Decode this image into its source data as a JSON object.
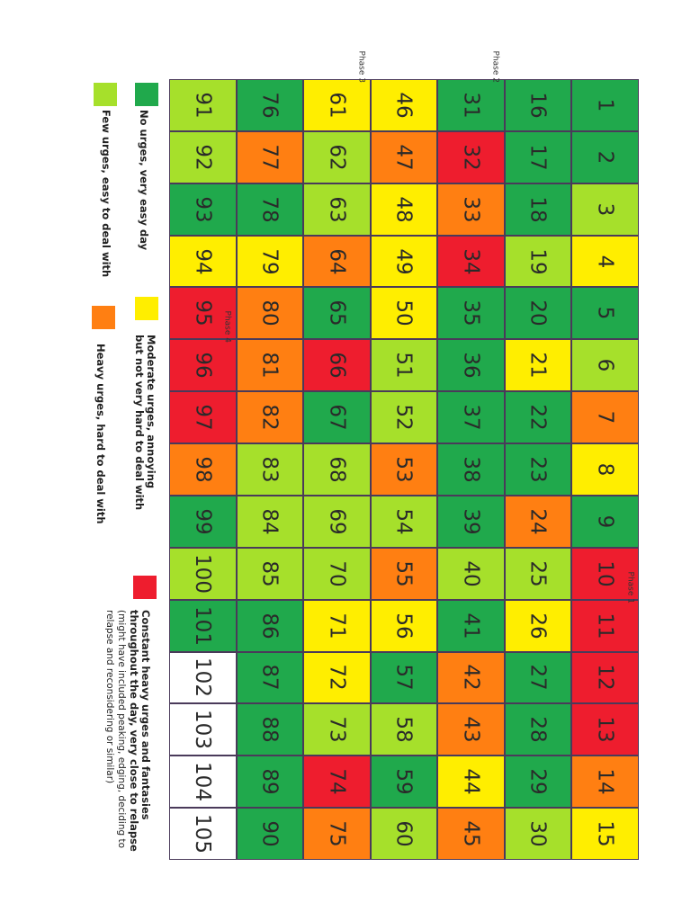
{
  "colors": {
    "G": "#20a94c",
    "L": "#a6e02b",
    "Y": "#ffee00",
    "O": "#ff7f12",
    "R": "#ee1d2e",
    "W": "#ffffff"
  },
  "grid": {
    "rows": [
      [
        {
          "n": "1",
          "c": "G"
        },
        {
          "n": "2",
          "c": "G"
        },
        {
          "n": "3",
          "c": "L"
        },
        {
          "n": "4",
          "c": "Y"
        },
        {
          "n": "5",
          "c": "G"
        },
        {
          "n": "6",
          "c": "L"
        },
        {
          "n": "7",
          "c": "O"
        },
        {
          "n": "8",
          "c": "Y"
        },
        {
          "n": "9",
          "c": "G"
        },
        {
          "n": "10",
          "c": "R"
        },
        {
          "n": "11",
          "c": "R",
          "phase": "Phase 1"
        },
        {
          "n": "12",
          "c": "R"
        },
        {
          "n": "13",
          "c": "R"
        },
        {
          "n": "14",
          "c": "O"
        },
        {
          "n": "15",
          "c": "Y"
        }
      ],
      [
        {
          "n": "16",
          "c": "G"
        },
        {
          "n": "17",
          "c": "G"
        },
        {
          "n": "18",
          "c": "G"
        },
        {
          "n": "19",
          "c": "L"
        },
        {
          "n": "20",
          "c": "G"
        },
        {
          "n": "21",
          "c": "Y"
        },
        {
          "n": "22",
          "c": "G"
        },
        {
          "n": "23",
          "c": "G"
        },
        {
          "n": "24",
          "c": "O"
        },
        {
          "n": "25",
          "c": "L"
        },
        {
          "n": "26",
          "c": "Y"
        },
        {
          "n": "27",
          "c": "G"
        },
        {
          "n": "28",
          "c": "G"
        },
        {
          "n": "29",
          "c": "G"
        },
        {
          "n": "30",
          "c": "L"
        }
      ],
      [
        {
          "n": "31",
          "c": "G",
          "phase": "Phase 2"
        },
        {
          "n": "32",
          "c": "R"
        },
        {
          "n": "33",
          "c": "O"
        },
        {
          "n": "34",
          "c": "R"
        },
        {
          "n": "35",
          "c": "G"
        },
        {
          "n": "36",
          "c": "G"
        },
        {
          "n": "37",
          "c": "G"
        },
        {
          "n": "38",
          "c": "G"
        },
        {
          "n": "39",
          "c": "G"
        },
        {
          "n": "40",
          "c": "L"
        },
        {
          "n": "41",
          "c": "G"
        },
        {
          "n": "42",
          "c": "O"
        },
        {
          "n": "43",
          "c": "O"
        },
        {
          "n": "44",
          "c": "Y"
        },
        {
          "n": "45",
          "c": "O"
        }
      ],
      [
        {
          "n": "46",
          "c": "Y"
        },
        {
          "n": "47",
          "c": "O"
        },
        {
          "n": "48",
          "c": "Y"
        },
        {
          "n": "49",
          "c": "Y"
        },
        {
          "n": "50",
          "c": "Y"
        },
        {
          "n": "51",
          "c": "L"
        },
        {
          "n": "52",
          "c": "L"
        },
        {
          "n": "53",
          "c": "O"
        },
        {
          "n": "54",
          "c": "L"
        },
        {
          "n": "55",
          "c": "O"
        },
        {
          "n": "56",
          "c": "Y"
        },
        {
          "n": "57",
          "c": "G"
        },
        {
          "n": "58",
          "c": "L"
        },
        {
          "n": "59",
          "c": "G"
        },
        {
          "n": "60",
          "c": "L"
        }
      ],
      [
        {
          "n": "61",
          "c": "Y",
          "phase": "Phase 3"
        },
        {
          "n": "62",
          "c": "L"
        },
        {
          "n": "63",
          "c": "L"
        },
        {
          "n": "64",
          "c": "O"
        },
        {
          "n": "65",
          "c": "G"
        },
        {
          "n": "66",
          "c": "R"
        },
        {
          "n": "67",
          "c": "G"
        },
        {
          "n": "68",
          "c": "L"
        },
        {
          "n": "69",
          "c": "L"
        },
        {
          "n": "70",
          "c": "L"
        },
        {
          "n": "71",
          "c": "Y"
        },
        {
          "n": "72",
          "c": "Y"
        },
        {
          "n": "73",
          "c": "L"
        },
        {
          "n": "74",
          "c": "R"
        },
        {
          "n": "75",
          "c": "O"
        }
      ],
      [
        {
          "n": "76",
          "c": "G"
        },
        {
          "n": "77",
          "c": "O"
        },
        {
          "n": "78",
          "c": "G"
        },
        {
          "n": "79",
          "c": "Y"
        },
        {
          "n": "80",
          "c": "O"
        },
        {
          "n": "81",
          "c": "O"
        },
        {
          "n": "82",
          "c": "O"
        },
        {
          "n": "83",
          "c": "L"
        },
        {
          "n": "84",
          "c": "L"
        },
        {
          "n": "85",
          "c": "L"
        },
        {
          "n": "86",
          "c": "G"
        },
        {
          "n": "87",
          "c": "G"
        },
        {
          "n": "88",
          "c": "G"
        },
        {
          "n": "89",
          "c": "G"
        },
        {
          "n": "90",
          "c": "G"
        }
      ],
      [
        {
          "n": "91",
          "c": "L"
        },
        {
          "n": "92",
          "c": "L"
        },
        {
          "n": "93",
          "c": "G"
        },
        {
          "n": "94",
          "c": "Y"
        },
        {
          "n": "95",
          "c": "R"
        },
        {
          "n": "96",
          "c": "R",
          "phase": "Phase 4"
        },
        {
          "n": "97",
          "c": "R"
        },
        {
          "n": "98",
          "c": "O"
        },
        {
          "n": "99",
          "c": "G"
        },
        {
          "n": "100",
          "c": "L"
        },
        {
          "n": "101",
          "c": "G"
        },
        {
          "n": "102",
          "c": "W"
        },
        {
          "n": "103",
          "c": "W"
        },
        {
          "n": "104",
          "c": "W"
        },
        {
          "n": "105",
          "c": "W"
        }
      ]
    ]
  },
  "legend": {
    "no_urges": "No urges, very easy day",
    "few_urges": "Few urges, easy to deal with",
    "moderate_line1": "Moderate urges, annoying",
    "moderate_line2": "but not very hard to deal with",
    "heavy": "Heavy urges, hard to deal with",
    "constant_line1": "Constant heavy urges and fantasies",
    "constant_line2": "throughout the day, very close to relapse",
    "constant_sub1": "(might have  included peaking, edging, deciding to",
    "constant_sub2": "relapse and reconsidering or similar)"
  }
}
